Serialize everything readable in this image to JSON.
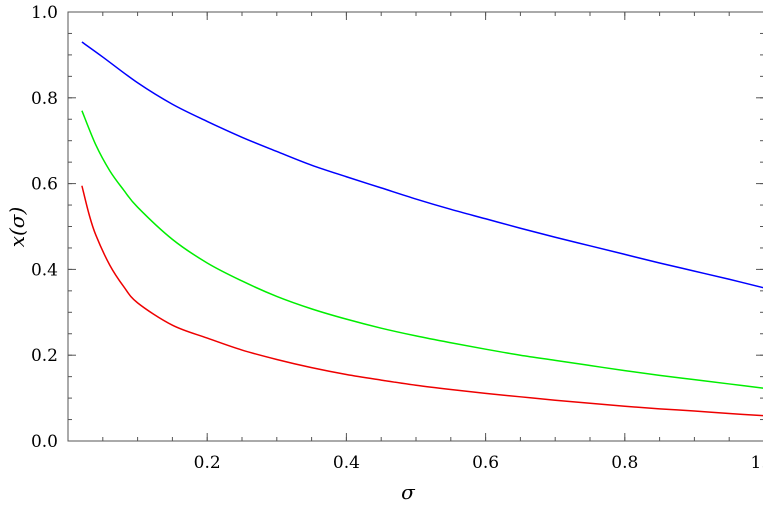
{
  "chart_data": {
    "type": "line",
    "title": "",
    "xlabel": "σ",
    "ylabel_parts": [
      "x(",
      "σ",
      ")"
    ],
    "xlim": [
      0.0,
      1.0
    ],
    "ylim": [
      0.0,
      1.0
    ],
    "x_ticks": [
      0.2,
      0.4,
      0.6,
      0.8,
      1.0
    ],
    "x_tick_labels": [
      "0.2",
      "0.4",
      "0.6",
      "0.8",
      "1.0"
    ],
    "y_ticks": [
      0.0,
      0.2,
      0.4,
      0.6,
      0.8,
      1.0
    ],
    "y_tick_labels": [
      "0.0",
      "0.2",
      "0.4",
      "0.6",
      "0.8",
      "1.0"
    ],
    "x_minor_step": 0.05,
    "y_minor_step": 0.05,
    "grid": false,
    "legend": "none",
    "series": [
      {
        "color": "#0000ff",
        "x": [
          0.02,
          0.05,
          0.1,
          0.15,
          0.2,
          0.25,
          0.3,
          0.35,
          0.4,
          0.45,
          0.5,
          0.55,
          0.6,
          0.65,
          0.7,
          0.75,
          0.8,
          0.85,
          0.9,
          0.95,
          1.0
        ],
        "y": [
          0.93,
          0.895,
          0.835,
          0.785,
          0.745,
          0.708,
          0.675,
          0.643,
          0.616,
          0.59,
          0.564,
          0.54,
          0.518,
          0.496,
          0.475,
          0.455,
          0.435,
          0.415,
          0.396,
          0.377,
          0.357
        ]
      },
      {
        "color": "#00ee00",
        "x": [
          0.02,
          0.04,
          0.06,
          0.08,
          0.1,
          0.15,
          0.2,
          0.25,
          0.3,
          0.35,
          0.4,
          0.45,
          0.5,
          0.55,
          0.6,
          0.65,
          0.7,
          0.75,
          0.8,
          0.85,
          0.9,
          0.95,
          1.0
        ],
        "y": [
          0.77,
          0.69,
          0.63,
          0.585,
          0.545,
          0.47,
          0.415,
          0.373,
          0.337,
          0.308,
          0.284,
          0.263,
          0.245,
          0.229,
          0.214,
          0.2,
          0.188,
          0.176,
          0.164,
          0.153,
          0.143,
          0.133,
          0.123
        ]
      },
      {
        "color": "#ee0000",
        "x": [
          0.02,
          0.03,
          0.04,
          0.06,
          0.08,
          0.1,
          0.15,
          0.2,
          0.25,
          0.3,
          0.35,
          0.4,
          0.45,
          0.5,
          0.55,
          0.6,
          0.65,
          0.7,
          0.75,
          0.8,
          0.85,
          0.9,
          0.95,
          1.0
        ],
        "y": [
          0.595,
          0.53,
          0.48,
          0.41,
          0.36,
          0.322,
          0.27,
          0.24,
          0.212,
          0.19,
          0.171,
          0.155,
          0.142,
          0.13,
          0.12,
          0.111,
          0.103,
          0.095,
          0.088,
          0.081,
          0.075,
          0.07,
          0.064,
          0.059
        ]
      }
    ]
  }
}
